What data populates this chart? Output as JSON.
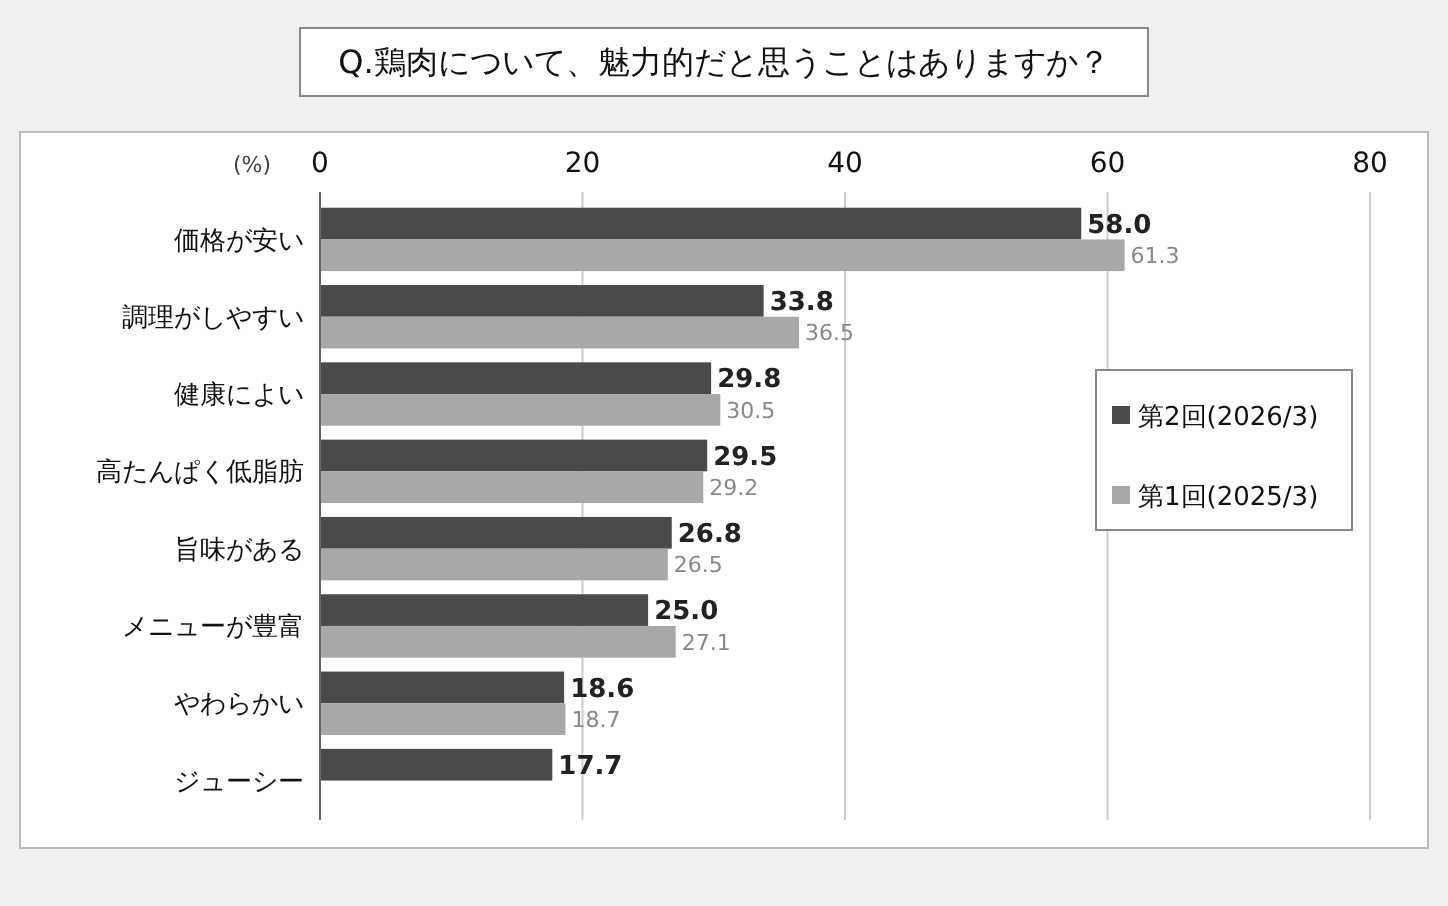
{
  "chart_data": {
    "type": "bar",
    "orientation": "horizontal",
    "title": "Q.鶏肉について、魅力的だと思うことはありますか？",
    "xlabel": "(%)",
    "categories": [
      "価格が安い",
      "調理がしやすい",
      "健康によい",
      "高たんぱく低脂肪",
      "旨味がある",
      "メニューが豊富",
      "やわらかい",
      "ジューシー"
    ],
    "series": [
      {
        "name": "第2回(2026/3)",
        "color": "#4a4a4a",
        "values": [
          58.0,
          33.8,
          29.8,
          29.5,
          26.8,
          25.0,
          18.6,
          17.7
        ],
        "value_labels": [
          "58.0",
          "33.8",
          "29.8",
          "29.5",
          "26.8",
          "25.0",
          "18.6",
          "17.7"
        ]
      },
      {
        "name": "第1回(2025/3)",
        "color": "#a8a8a8",
        "values": [
          61.3,
          36.5,
          30.5,
          29.2,
          26.5,
          27.1,
          18.7,
          null
        ],
        "value_labels": [
          "61.3",
          "36.5",
          "30.5",
          "29.2",
          "26.5",
          "27.1",
          "18.7",
          null
        ]
      }
    ],
    "xlim": [
      0,
      80
    ],
    "xticks": [
      0,
      20,
      40,
      60,
      80
    ],
    "grid": "x",
    "legend": "right"
  }
}
